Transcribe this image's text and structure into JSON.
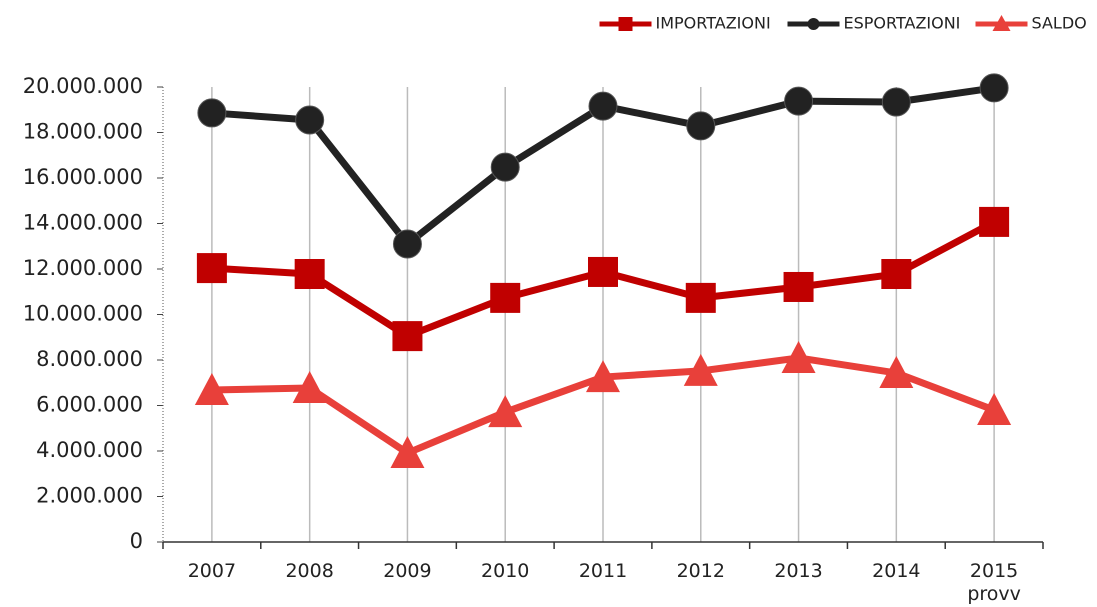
{
  "chart_data": {
    "type": "line",
    "categories": [
      "2007",
      "2008",
      "2009",
      "2010",
      "2011",
      "2012",
      "2013",
      "2014",
      "2015\nprovv"
    ],
    "series": [
      {
        "name": "IMPORTAZIONI",
        "color": "#c00000",
        "marker": "square",
        "values": [
          12040000,
          11780000,
          9050000,
          10730000,
          11870000,
          10730000,
          11210000,
          11780000,
          14070000
        ]
      },
      {
        "name": "ESPORTAZIONI",
        "color": "#222222",
        "marker": "circle",
        "values": [
          18860000,
          18550000,
          13100000,
          16480000,
          19160000,
          18290000,
          19380000,
          19340000,
          19960000
        ]
      },
      {
        "name": "SALDO",
        "color": "#e8403a",
        "marker": "triangle",
        "values": [
          6680000,
          6770000,
          3910000,
          5710000,
          7250000,
          7520000,
          8090000,
          7430000,
          5800000
        ]
      }
    ],
    "ylim": [
      0,
      20000000
    ],
    "yticks": [
      0,
      {
        "value": 2000000,
        "label": "2.000.000"
      },
      {
        "value": 4000000,
        "label": "4.000.000"
      },
      {
        "value": 6000000,
        "label": "6.000.000"
      },
      {
        "value": 8000000,
        "label": "8.000.000"
      },
      {
        "value": 10000000,
        "label": "10.000.000"
      },
      {
        "value": 12000000,
        "label": "12.000.000"
      },
      {
        "value": 14000000,
        "label": "14.000.000"
      },
      {
        "value": 16000000,
        "label": "16.000.000"
      },
      {
        "value": 18000000,
        "label": "18.000.000"
      },
      {
        "value": 20000000,
        "label": "20.000.000"
      }
    ],
    "legend": "top-right"
  }
}
